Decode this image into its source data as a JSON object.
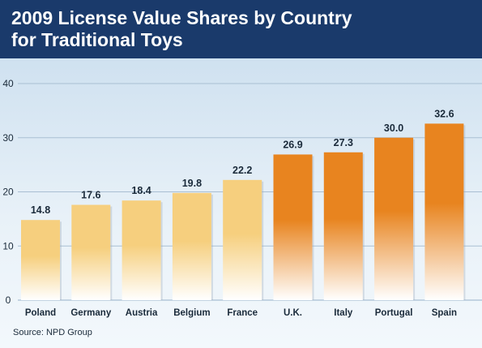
{
  "colors": {
    "header_bg": "#1a3a6b",
    "light_bar_top": "#f6cf7e",
    "dark_bar_top": "#e8841f",
    "bar_bottom": "#ffffff",
    "gridline": "#a9bfd3"
  },
  "chart_data": {
    "type": "bar",
    "title": "2009 License Value Shares by Country",
    "subtitle": "for Traditional Toys",
    "categories": [
      "Poland",
      "Germany",
      "Austria",
      "Belgium",
      "France",
      "U.K.",
      "Italy",
      "Portugal",
      "Spain"
    ],
    "values": [
      14.8,
      17.6,
      18.4,
      19.8,
      22.2,
      26.9,
      27.3,
      30.0,
      32.6
    ],
    "value_labels": [
      "14.8",
      "17.6",
      "18.4",
      "19.8",
      "22.2",
      "26.9",
      "27.3",
      "30.0",
      "32.6"
    ],
    "bar_style": [
      "light",
      "light",
      "light",
      "light",
      "light",
      "dark",
      "dark",
      "dark",
      "dark"
    ],
    "ylim": [
      0,
      40
    ],
    "yticks": [
      "0",
      "10",
      "20",
      "30",
      "40"
    ],
    "xlabel": "",
    "ylabel": "",
    "grid": true,
    "legend": "none"
  },
  "source": "Source: NPD Group"
}
